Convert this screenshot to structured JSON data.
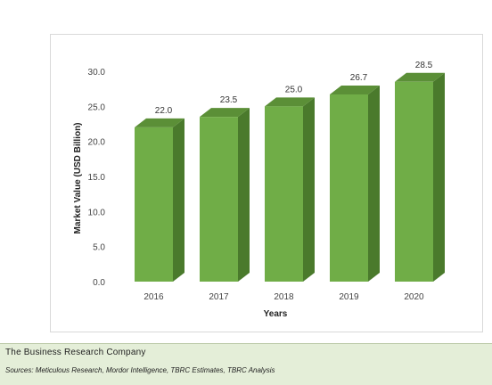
{
  "chart_data": {
    "type": "bar",
    "title": "",
    "xlabel": "Years",
    "ylabel": "Market Value (USD Billion)",
    "categories": [
      "2016",
      "2017",
      "2018",
      "2019",
      "2020"
    ],
    "values": [
      22.0,
      23.5,
      25.0,
      26.7,
      28.5
    ],
    "value_labels": [
      "22.0",
      "23.5",
      "25.0",
      "26.7",
      "28.5"
    ],
    "ylim": [
      0,
      30
    ],
    "yticks": [
      "0.0",
      "5.0",
      "10.0",
      "15.0",
      "20.0",
      "25.0",
      "30.0"
    ],
    "grid": false,
    "legend": "none",
    "style": "3d-column",
    "colors": {
      "bar_front": "#70ad47",
      "bar_side": "#4a7a2c",
      "bar_top": "#5b8f37"
    }
  },
  "footer": {
    "company": "The Business Research Company",
    "sources": "Sources: Meticulous Research, Mordor Intelligence, TBRC Estimates, TBRC Analysis"
  }
}
